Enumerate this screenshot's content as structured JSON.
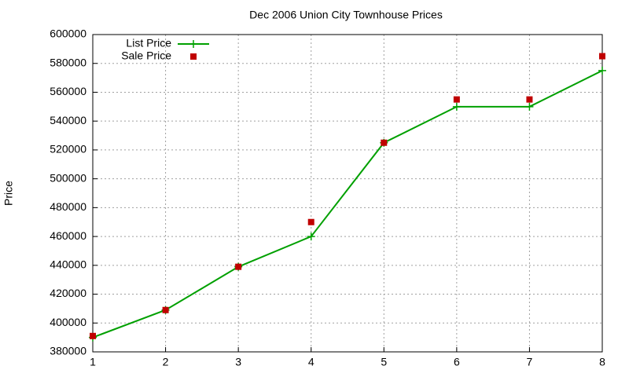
{
  "chart_data": {
    "type": "line",
    "title": "Dec 2006 Union City Townhouse Prices",
    "y_label": "Price",
    "x": [
      1,
      2,
      3,
      4,
      5,
      6,
      7,
      8
    ],
    "series": [
      {
        "name": "List Price",
        "color": "#00a000",
        "marker": "plus",
        "line": true,
        "values": [
          390000,
          409000,
          439000,
          460000,
          525000,
          550000,
          550000,
          575000
        ]
      },
      {
        "name": "Sale Price",
        "color": "#c00000",
        "marker": "square",
        "line": false,
        "values": [
          391000,
          409000,
          439000,
          470000,
          525000,
          555000,
          555000,
          585000
        ]
      }
    ],
    "xlim": [
      1,
      8
    ],
    "xticks": [
      1,
      2,
      3,
      4,
      5,
      6,
      7,
      8
    ],
    "ylim": [
      380000,
      600000
    ],
    "yticks": [
      380000,
      400000,
      420000,
      440000,
      460000,
      480000,
      500000,
      520000,
      540000,
      560000,
      580000,
      600000
    ],
    "grid": true,
    "legend": "top-left"
  }
}
